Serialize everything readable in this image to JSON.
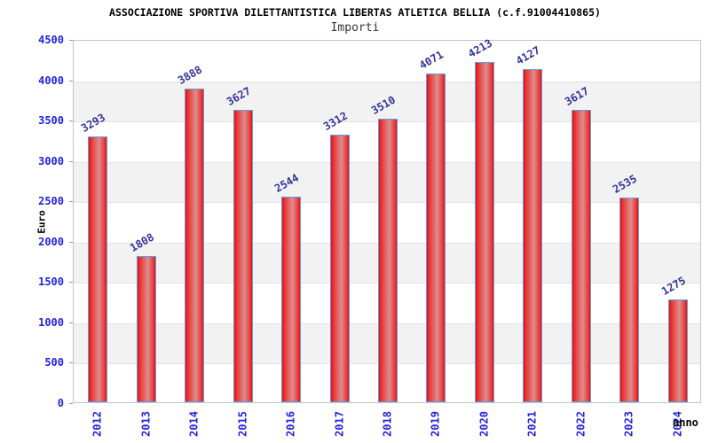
{
  "chart_data": {
    "type": "bar",
    "title": "ASSOCIAZIONE SPORTIVA DILETTANTISTICA LIBERTAS ATLETICA BELLIA (c.f.91004410865)",
    "subtitle": "Importi",
    "xlabel": "anno",
    "ylabel": "Euro",
    "categories": [
      "2012",
      "2013",
      "2014",
      "2015",
      "2016",
      "2017",
      "2018",
      "2019",
      "2020",
      "2021",
      "2022",
      "2023",
      "2024"
    ],
    "values": [
      3293,
      1808,
      3888,
      3627,
      2544,
      3312,
      3510,
      4071,
      4213,
      4127,
      3617,
      2535,
      1275
    ],
    "ylim": [
      0,
      4500
    ],
    "ytick_step": 500,
    "grid": "horizontal bands every 500, alternating white and light gray",
    "legend": "none",
    "bar_value_labels": "shown above each bar, rotated -30deg",
    "x_tick_rotation": -90
  },
  "colors": {
    "title": "#000000",
    "subtitle": "#333333",
    "axis_tick_label": "#2222dd",
    "value_label": "#333399",
    "bar_edge_red": "#e81111",
    "bar_mid_red": "#ee3a3a",
    "bar_center_light": "#d99090",
    "bar_border": "#58a0ea",
    "band_gray": "#f2f2f2",
    "grid_line": "#e3e3e3",
    "plot_border": "#c4c4c4",
    "tick_mark": "#999999",
    "axis_title": "#000000"
  }
}
